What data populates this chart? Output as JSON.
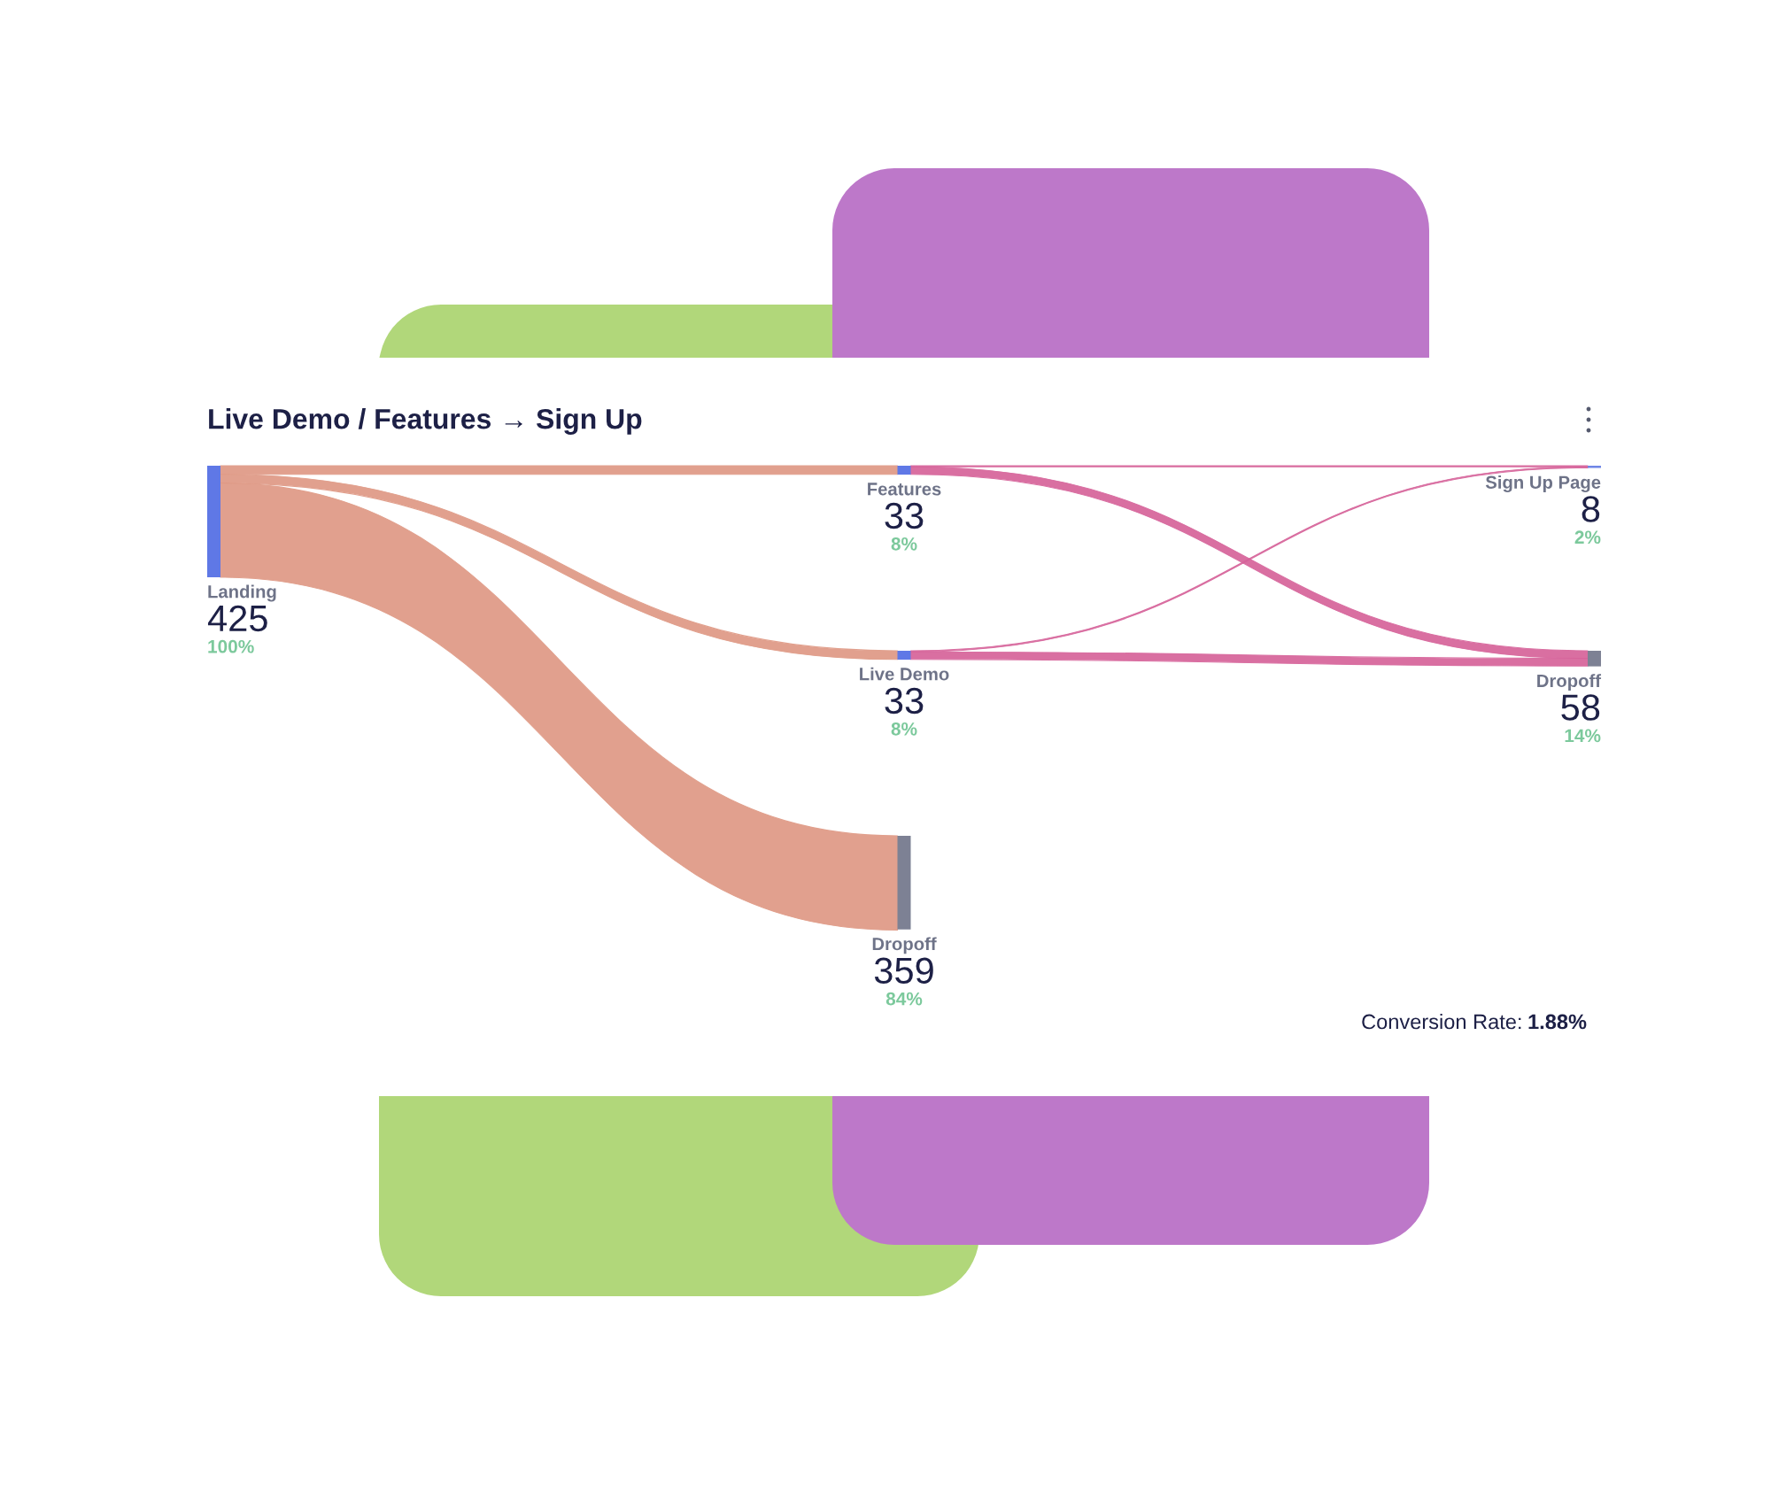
{
  "chart_data": {
    "type": "other",
    "title": "Live Demo / Features → Sign Up",
    "categories": [
      "Landing",
      "Features",
      "Live Demo",
      "Dropoff",
      "Sign Up Page",
      "Dropoff"
    ],
    "series": [
      {
        "values": [
          425,
          33,
          33,
          359,
          8,
          58
        ],
        "colors": [
          "#5f78e6",
          "#5f78e6",
          "#5f78e6",
          "#7d8194",
          "#6f86e6",
          "#7d8194"
        ]
      },
      {
        "values": [
          100,
          8,
          8,
          84,
          2,
          14
        ],
        "value_labels": [
          "100%",
          "8%",
          "8%",
          "84%",
          "2%",
          "14%"
        ],
        "color": "#7cc99c"
      }
    ],
    "colors": [
      "#df9985",
      "#d6639a"
    ],
    "data_labels": true,
    "annotations": [
      "Conversion Rate: 1.88%"
    ]
  }
}
